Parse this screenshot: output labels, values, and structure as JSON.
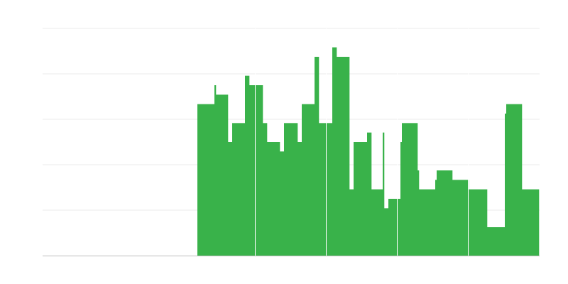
{
  "chart_data": {
    "type": "area",
    "step": true,
    "title": "",
    "xlabel": "",
    "ylabel": "",
    "xlim": [
      0,
      70
    ],
    "ylim": [
      0,
      24
    ],
    "grid": true,
    "horizontal_gridlines": [
      0,
      4.8,
      9.6,
      14.4,
      19.2,
      24
    ],
    "vertical_separators": [
      30,
      40,
      50,
      60
    ],
    "x_end": 69.9,
    "steps": [
      [
        21.8,
        16
      ],
      [
        24.2,
        18
      ],
      [
        24.4,
        17
      ],
      [
        26.1,
        12
      ],
      [
        26.7,
        14
      ],
      [
        28.5,
        19
      ],
      [
        29.1,
        18
      ],
      [
        31.0,
        14
      ],
      [
        31.6,
        12
      ],
      [
        33.4,
        11
      ],
      [
        34.0,
        14
      ],
      [
        35.9,
        12
      ],
      [
        36.5,
        16
      ],
      [
        38.3,
        21
      ],
      [
        38.9,
        14
      ],
      [
        40.8,
        22
      ],
      [
        41.4,
        21
      ],
      [
        43.2,
        7
      ],
      [
        43.8,
        12
      ],
      [
        45.7,
        13
      ],
      [
        46.3,
        7
      ],
      [
        47.9,
        13
      ],
      [
        48.1,
        5
      ],
      [
        48.7,
        6
      ],
      [
        50.4,
        12
      ],
      [
        50.6,
        14
      ],
      [
        52.8,
        9
      ],
      [
        53.0,
        7
      ],
      [
        55.3,
        8
      ],
      [
        55.5,
        9
      ],
      [
        57.7,
        8
      ],
      [
        60.0,
        7
      ],
      [
        62.6,
        3
      ],
      [
        65.1,
        15
      ],
      [
        65.3,
        16
      ],
      [
        67.5,
        7
      ]
    ],
    "colors": {
      "fill": "#39b24a",
      "grid": "#ebebeb",
      "axis": "#bdbdbd",
      "separator": "#ffffff"
    }
  }
}
